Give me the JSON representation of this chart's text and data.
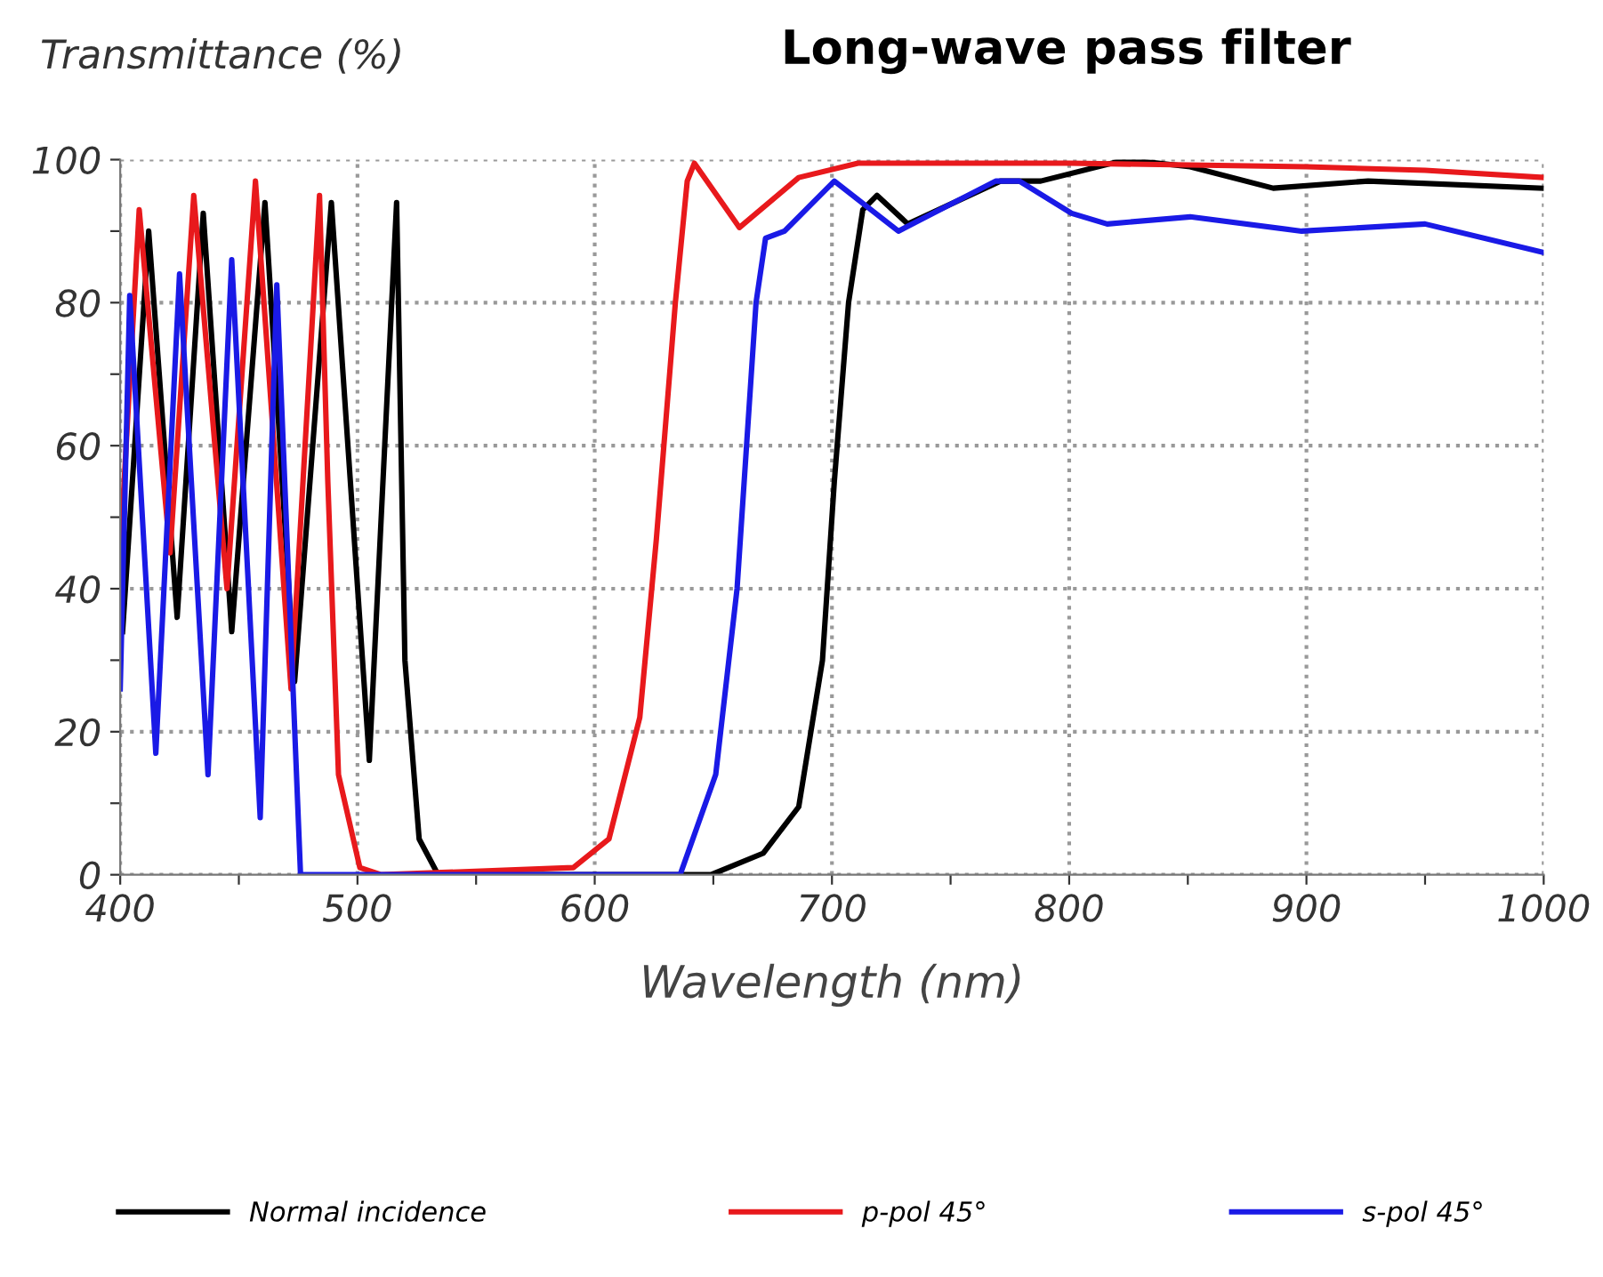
{
  "chart_data": {
    "type": "line",
    "title": "Long-wave pass filter",
    "xlabel": "Wavelength (nm)",
    "ylabel": "Transmittance (%)",
    "xlim": [
      400,
      1000
    ],
    "ylim": [
      0,
      100
    ],
    "xticks": [
      400,
      {
        "value": 450,
        "label": null
      },
      500,
      {
        "value": 550,
        "label": null
      },
      600,
      {
        "value": 650,
        "label": null
      },
      700,
      {
        "value": 750,
        "label": null
      },
      800,
      {
        "value": 850,
        "label": null
      },
      900,
      {
        "value": 950,
        "label": null
      },
      1000
    ],
    "yticks": [
      0,
      {
        "value": 10,
        "label": null
      },
      20,
      {
        "value": 30,
        "label": null
      },
      40,
      {
        "value": 50,
        "label": null
      },
      60,
      {
        "value": 70,
        "label": null
      },
      80,
      {
        "value": 90,
        "label": null
      },
      100
    ],
    "grid": true,
    "legend": "bottom",
    "line_style": "solid",
    "marker": "none",
    "series": [
      {
        "name": "Normal incidence",
        "color": "#000000",
        "x": [
          401,
          412,
          424,
          435,
          447,
          461,
          473.5,
          489,
          505,
          516.5,
          520,
          526,
          534,
          649,
          671,
          686,
          696,
          701,
          707,
          713,
          719,
          732,
          771,
          788,
          824,
          851,
          886,
          926,
          1000
        ],
        "values": [
          34,
          90,
          36,
          92.5,
          34,
          94,
          27,
          94,
          16,
          94,
          30,
          5,
          0,
          0,
          3,
          9.5,
          30,
          55,
          80,
          93,
          95,
          91,
          97,
          97,
          100,
          99,
          96,
          97,
          96
        ]
      },
      {
        "name": "p-pol 45°",
        "color": "#e8191c",
        "x": [
          400,
          408,
          421,
          431,
          445,
          457,
          472,
          484,
          487.5,
          492,
          501,
          510,
          591,
          606,
          619,
          626,
          634,
          639,
          642,
          661,
          686,
          711,
          800,
          900,
          950,
          1000
        ],
        "values": [
          45,
          93,
          45,
          95,
          40,
          97,
          26,
          95,
          55,
          14,
          1,
          0,
          1,
          5,
          22,
          47,
          80,
          97,
          99.5,
          90.5,
          97.5,
          99.5,
          99.5,
          99,
          98.5,
          97.5
        ]
      },
      {
        "name": "s-pol 45°",
        "color": "#1a1ae6",
        "x": [
          400,
          404,
          415,
          425,
          437,
          447,
          459,
          466,
          476,
          636,
          651,
          660,
          668,
          672,
          680,
          701,
          728,
          769,
          779,
          801,
          816,
          851,
          898,
          950,
          1000
        ],
        "values": [
          26,
          81,
          17,
          84,
          14,
          86,
          8,
          82.5,
          0,
          0,
          14,
          40,
          80,
          89,
          90,
          97,
          90,
          97,
          97,
          92.5,
          91,
          92,
          90,
          91,
          87
        ]
      }
    ]
  }
}
